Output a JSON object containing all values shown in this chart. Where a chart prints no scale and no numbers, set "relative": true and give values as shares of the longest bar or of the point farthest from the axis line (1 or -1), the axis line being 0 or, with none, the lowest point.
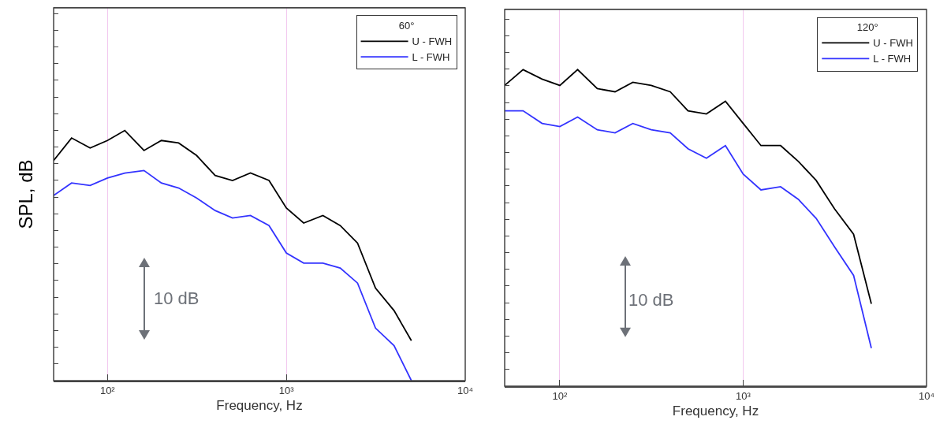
{
  "chart_data": [
    {
      "type": "line",
      "relative": true,
      "ylabel": "SPL, dB",
      "xlabel": "Frequency, Hz",
      "legend_title": "60°",
      "legend": "top right",
      "grid": "x",
      "log": "x",
      "line_style": "solid",
      "marker": "none",
      "xlim": [
        50,
        10000
      ],
      "xticks": [
        {
          "value": 100,
          "label": "10²"
        },
        {
          "value": 1000,
          "label": "10³"
        },
        {
          "value": 10000,
          "label": "10⁴"
        }
      ],
      "x": [
        50,
        63,
        80,
        100,
        125,
        160,
        200,
        250,
        315,
        400,
        500,
        630,
        800,
        1000,
        1250,
        1600,
        2000,
        2500,
        3150,
        4000,
        5000
      ],
      "annotations": [
        "10 dB"
      ],
      "series": [
        {
          "name": "U - FWH",
          "color": "#000000",
          "values": [
            0.88,
            0.97,
            0.93,
            0.96,
            1.0,
            0.92,
            0.96,
            0.95,
            0.9,
            0.82,
            0.8,
            0.83,
            0.8,
            0.69,
            0.63,
            0.66,
            0.62,
            0.55,
            0.37,
            0.28,
            0.16
          ]
        },
        {
          "name": "L - FWH",
          "color": "#3333ff",
          "values": [
            0.74,
            0.79,
            0.78,
            0.81,
            0.83,
            0.84,
            0.79,
            0.77,
            0.73,
            0.68,
            0.65,
            0.66,
            0.62,
            0.51,
            0.47,
            0.47,
            0.45,
            0.39,
            0.21,
            0.14,
            0
          ]
        }
      ]
    },
    {
      "type": "line",
      "relative": true,
      "xlabel": "Frequency, Hz",
      "legend_title": "120°",
      "legend": "top right",
      "grid": "x",
      "log": "x",
      "line_style": "solid",
      "marker": "none",
      "xlim": [
        50,
        10000
      ],
      "xticks": [
        {
          "value": 100,
          "label": "10²"
        },
        {
          "value": 1000,
          "label": "10³"
        },
        {
          "value": 10000,
          "label": "10⁴"
        }
      ],
      "x": [
        50,
        63,
        80,
        100,
        125,
        160,
        200,
        250,
        315,
        400,
        500,
        630,
        800,
        1000,
        1250,
        1600,
        2000,
        2500,
        3150,
        4000,
        5000
      ],
      "annotations": [
        "10 dB"
      ],
      "series": [
        {
          "name": "U - FWH",
          "color": "#000000",
          "values": [
            0.95,
            1.0,
            0.97,
            0.95,
            1.0,
            0.94,
            0.93,
            0.96,
            0.95,
            0.93,
            0.87,
            0.86,
            0.9,
            0.83,
            0.76,
            0.76,
            0.71,
            0.65,
            0.56,
            0.48,
            0.26
          ]
        },
        {
          "name": "L - FWH",
          "color": "#3333ff",
          "values": [
            0.87,
            0.87,
            0.83,
            0.82,
            0.85,
            0.81,
            0.8,
            0.83,
            0.81,
            0.8,
            0.75,
            0.72,
            0.76,
            0.67,
            0.62,
            0.63,
            0.59,
            0.53,
            0.44,
            0.35,
            0.12
          ]
        }
      ]
    }
  ]
}
